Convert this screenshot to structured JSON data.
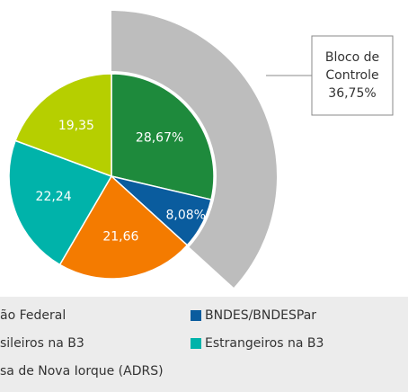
{
  "chart_data": {
    "type": "pie",
    "categories": [
      "ão Federal",
      "BNDES/BNDESPar",
      "sileiros na B3",
      "Estrangeiros na B3",
      "sa de Nova Iorque (ADRS)"
    ],
    "values": [
      28.67,
      8.08,
      21.66,
      22.24,
      19.35
    ],
    "value_labels": [
      "28,67%",
      "8,08%",
      "21,66",
      "22,24",
      "19,35"
    ],
    "colors": [
      "#1e8a3c",
      "#0a5c9e",
      "#f47b00",
      "#00b3aa",
      "#b6cf00"
    ],
    "annotation": {
      "lines": [
        "Bloco de",
        "Controle",
        "36,75%"
      ],
      "value": 36.75,
      "color": "#bdbdbd"
    }
  }
}
